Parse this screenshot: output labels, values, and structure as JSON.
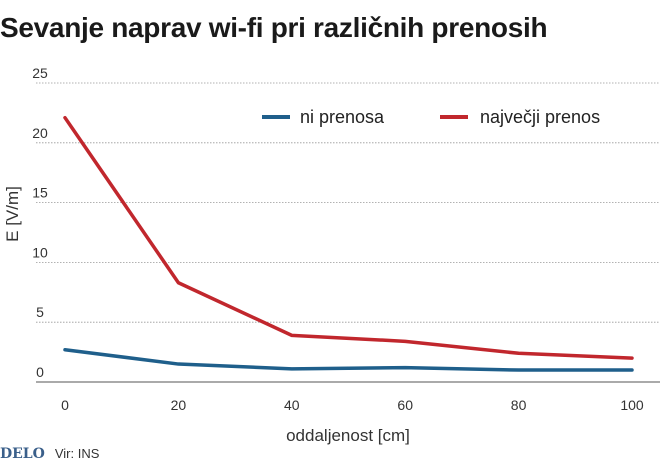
{
  "title": "Sevanje naprav wi-fi pri različnih prenosih",
  "footer": {
    "logo": "DELO",
    "source": "Vir: INS"
  },
  "chart_data": {
    "type": "line",
    "x": [
      0,
      20,
      40,
      60,
      80,
      100
    ],
    "xlabel": "oddaljenost [cm]",
    "ylabel": "E [V/m]",
    "xlim": [
      0,
      100
    ],
    "ylim": [
      0,
      25
    ],
    "xticks": [
      "0",
      "20",
      "40",
      "60",
      "80",
      "100"
    ],
    "yticks": [
      "0",
      "5",
      "10",
      "15",
      "20",
      "25"
    ],
    "grid": "horizontal",
    "legend": "top-right",
    "series": [
      {
        "name": "ni prenosa",
        "color": "#1f5f8b",
        "values": [
          2.7,
          1.5,
          1.1,
          1.2,
          1.0,
          1.0
        ]
      },
      {
        "name": "največji prenos",
        "color": "#c1272d",
        "values": [
          22.1,
          8.3,
          3.9,
          3.4,
          2.4,
          2.0
        ]
      }
    ]
  }
}
